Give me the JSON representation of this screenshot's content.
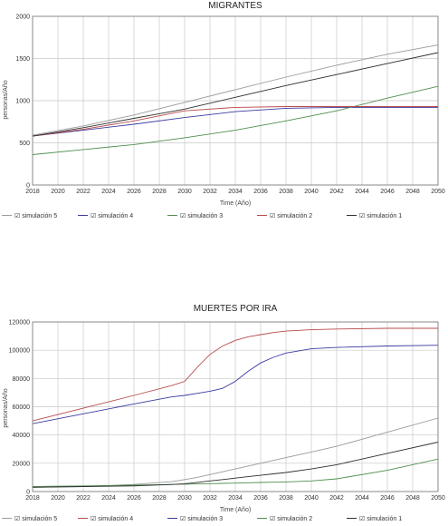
{
  "chart_data": [
    {
      "type": "line",
      "title": "MIGRANTES",
      "xlabel": "Time (Año)",
      "ylabel": "personas/Año",
      "xlim": [
        2018,
        2050
      ],
      "ylim": [
        0,
        2000
      ],
      "x_ticks": [
        2018,
        2020,
        2022,
        2024,
        2026,
        2028,
        2030,
        2032,
        2034,
        2036,
        2038,
        2040,
        2042,
        2044,
        2046,
        2048,
        2050
      ],
      "y_ticks": [
        0,
        500,
        1000,
        1500,
        2000
      ],
      "y_tick_labels": [
        "0",
        "500",
        "1000",
        "1500",
        "2000"
      ],
      "grid": true,
      "legend_position": "bottom",
      "legend_marker": "☑",
      "x": [
        2018,
        2022,
        2026,
        2030,
        2034,
        2038,
        2042,
        2046,
        2050
      ],
      "series": [
        {
          "name": "simulación 5",
          "color": "#9a9a9a",
          "values": [
            590,
            700,
            830,
            980,
            1130,
            1280,
            1420,
            1550,
            1660
          ]
        },
        {
          "name": "simulación 4",
          "color": "#3c3ca0",
          "values": [
            580,
            650,
            720,
            800,
            870,
            910,
            920,
            920,
            920
          ]
        },
        {
          "name": "simulación 3",
          "color": "#4f8f4f",
          "values": [
            360,
            420,
            480,
            560,
            650,
            760,
            880,
            1030,
            1170
          ]
        },
        {
          "name": "simulación 2",
          "color": "#b84c4c",
          "values": [
            580,
            660,
            760,
            880,
            920,
            930,
            930,
            930,
            930
          ]
        },
        {
          "name": "simulación 1",
          "color": "#303030",
          "values": [
            580,
            680,
            790,
            900,
            1040,
            1180,
            1310,
            1440,
            1570
          ]
        }
      ]
    },
    {
      "type": "line",
      "title": "MUERTES POR IRA",
      "xlabel": "Time (Año)",
      "ylabel": "personas/Año",
      "xlim": [
        2018,
        2050
      ],
      "ylim": [
        0,
        120000
      ],
      "x_ticks": [
        2018,
        2020,
        2022,
        2024,
        2026,
        2028,
        2030,
        2032,
        2034,
        2036,
        2038,
        2040,
        2042,
        2044,
        2046,
        2048,
        2050
      ],
      "y_ticks": [
        0,
        20000,
        40000,
        60000,
        80000,
        100000,
        120000
      ],
      "y_tick_labels": [
        "0",
        "20000",
        "40000",
        "60000",
        "80000",
        "100000",
        "120000"
      ],
      "grid": true,
      "legend_position": "bottom",
      "legend_marker": "☑",
      "x": [
        2018,
        2022,
        2026,
        2029,
        2030,
        2031,
        2032,
        2033,
        2034,
        2035,
        2036,
        2037,
        2038,
        2040,
        2042,
        2046,
        2050
      ],
      "series": [
        {
          "name": "simulación 5",
          "color": "#9a9a9a",
          "values": [
            3000,
            3500,
            5000,
            7000,
            8500,
            10000,
            12000,
            14000,
            16000,
            18000,
            20000,
            22000,
            24000,
            28000,
            32000,
            42000,
            52000
          ]
        },
        {
          "name": "simulación 4",
          "color": "#b84c4c",
          "values": [
            50000,
            59000,
            68000,
            75000,
            78000,
            88000,
            97000,
            103000,
            107000,
            109500,
            111000,
            112500,
            113500,
            114500,
            115000,
            115500,
            115500
          ]
        },
        {
          "name": "simulación 3",
          "color": "#3c3ca0",
          "values": [
            48000,
            55000,
            62000,
            67000,
            68000,
            69500,
            71000,
            73000,
            78000,
            85000,
            91000,
            95000,
            98000,
            101000,
            102000,
            103000,
            103500
          ]
        },
        {
          "name": "simulación 2",
          "color": "#4f8f4f",
          "values": [
            3500,
            4000,
            4500,
            5000,
            5200,
            5400,
            5600,
            5800,
            6000,
            6200,
            6400,
            6600,
            6800,
            7500,
            9000,
            15000,
            23000
          ]
        },
        {
          "name": "simulación 1",
          "color": "#303030",
          "values": [
            3000,
            3500,
            4000,
            5000,
            5500,
            6500,
            7500,
            8500,
            9500,
            10500,
            11500,
            12500,
            13500,
            16000,
            19000,
            27000,
            35000
          ]
        }
      ]
    }
  ]
}
